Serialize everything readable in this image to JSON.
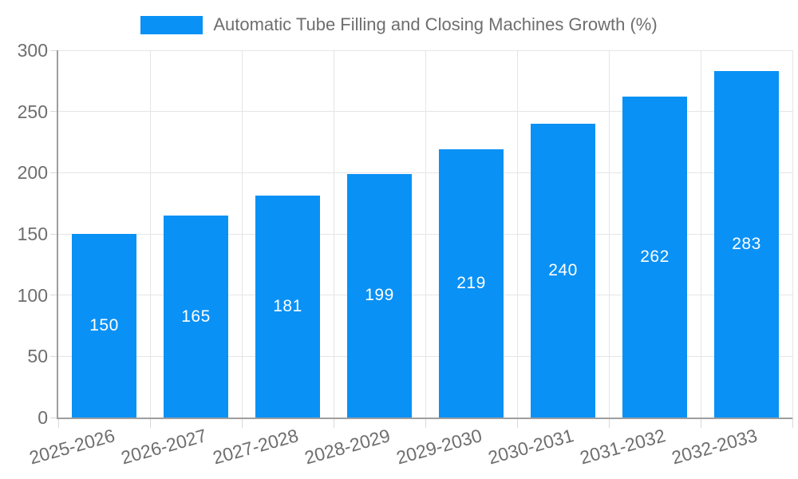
{
  "legend": {
    "label": "Automatic Tube Filling and Closing Machines Growth (%)"
  },
  "chart_data": {
    "type": "bar",
    "title": "Automatic Tube Filling and Closing Machines Growth (%)",
    "categories": [
      "2025-2026",
      "2026-2027",
      "2027-2028",
      "2028-2029",
      "2029-2030",
      "2030-2031",
      "2031-2032",
      "2032-2033"
    ],
    "values": [
      150,
      165,
      181,
      199,
      219,
      240,
      262,
      283
    ],
    "xlabel": "",
    "ylabel": "",
    "ylim": [
      0,
      300
    ],
    "yticks": [
      0,
      50,
      100,
      150,
      200,
      250,
      300
    ],
    "grid": true,
    "legend_position": "top",
    "value_labels": "inside-center"
  },
  "colors": {
    "bar": "#0a91f5",
    "value_label": "#ffffff",
    "axis_text": "#6e6e6e",
    "grid_line": "#e5e5e5",
    "tick_line": "#d9d9d9",
    "axis_line": "#9e9e9e"
  }
}
